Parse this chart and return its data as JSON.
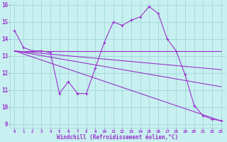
{
  "background_color": "#c8f0f0",
  "grid_color": "#a0d8d8",
  "line_color": "#9932CC",
  "marker_color": "#9932CC",
  "xlabel": "Windchill (Refroidissement éolien,°C)",
  "xlabel_color": "#9932CC",
  "tick_color": "#9932CC",
  "ylim": [
    8.8,
    16.2
  ],
  "xlim": [
    -0.5,
    23.5
  ],
  "yticks": [
    9,
    10,
    11,
    12,
    13,
    14,
    15,
    16
  ],
  "xticks": [
    0,
    1,
    2,
    3,
    4,
    5,
    6,
    7,
    8,
    9,
    10,
    11,
    12,
    13,
    14,
    15,
    16,
    17,
    18,
    19,
    20,
    21,
    22,
    23
  ],
  "series": [
    {
      "x": [
        0,
        1,
        2,
        3,
        4,
        5,
        6,
        7,
        8,
        9,
        10,
        11,
        12,
        13,
        14,
        15,
        16,
        17,
        18,
        19,
        20,
        21,
        22,
        23
      ],
      "y": [
        14.5,
        13.5,
        13.3,
        13.3,
        13.2,
        10.8,
        11.5,
        10.8,
        10.8,
        12.3,
        13.8,
        15.0,
        14.8,
        15.1,
        15.3,
        15.9,
        15.5,
        14.0,
        13.3,
        11.9,
        10.1,
        9.5,
        9.3,
        9.2
      ]
    },
    {
      "x": [
        0,
        18,
        23
      ],
      "y": [
        13.3,
        13.3,
        13.3
      ]
    },
    {
      "x": [
        0,
        23
      ],
      "y": [
        13.3,
        12.2
      ]
    },
    {
      "x": [
        0,
        23
      ],
      "y": [
        13.3,
        11.2
      ]
    },
    {
      "x": [
        0,
        23
      ],
      "y": [
        13.3,
        9.2
      ]
    }
  ]
}
